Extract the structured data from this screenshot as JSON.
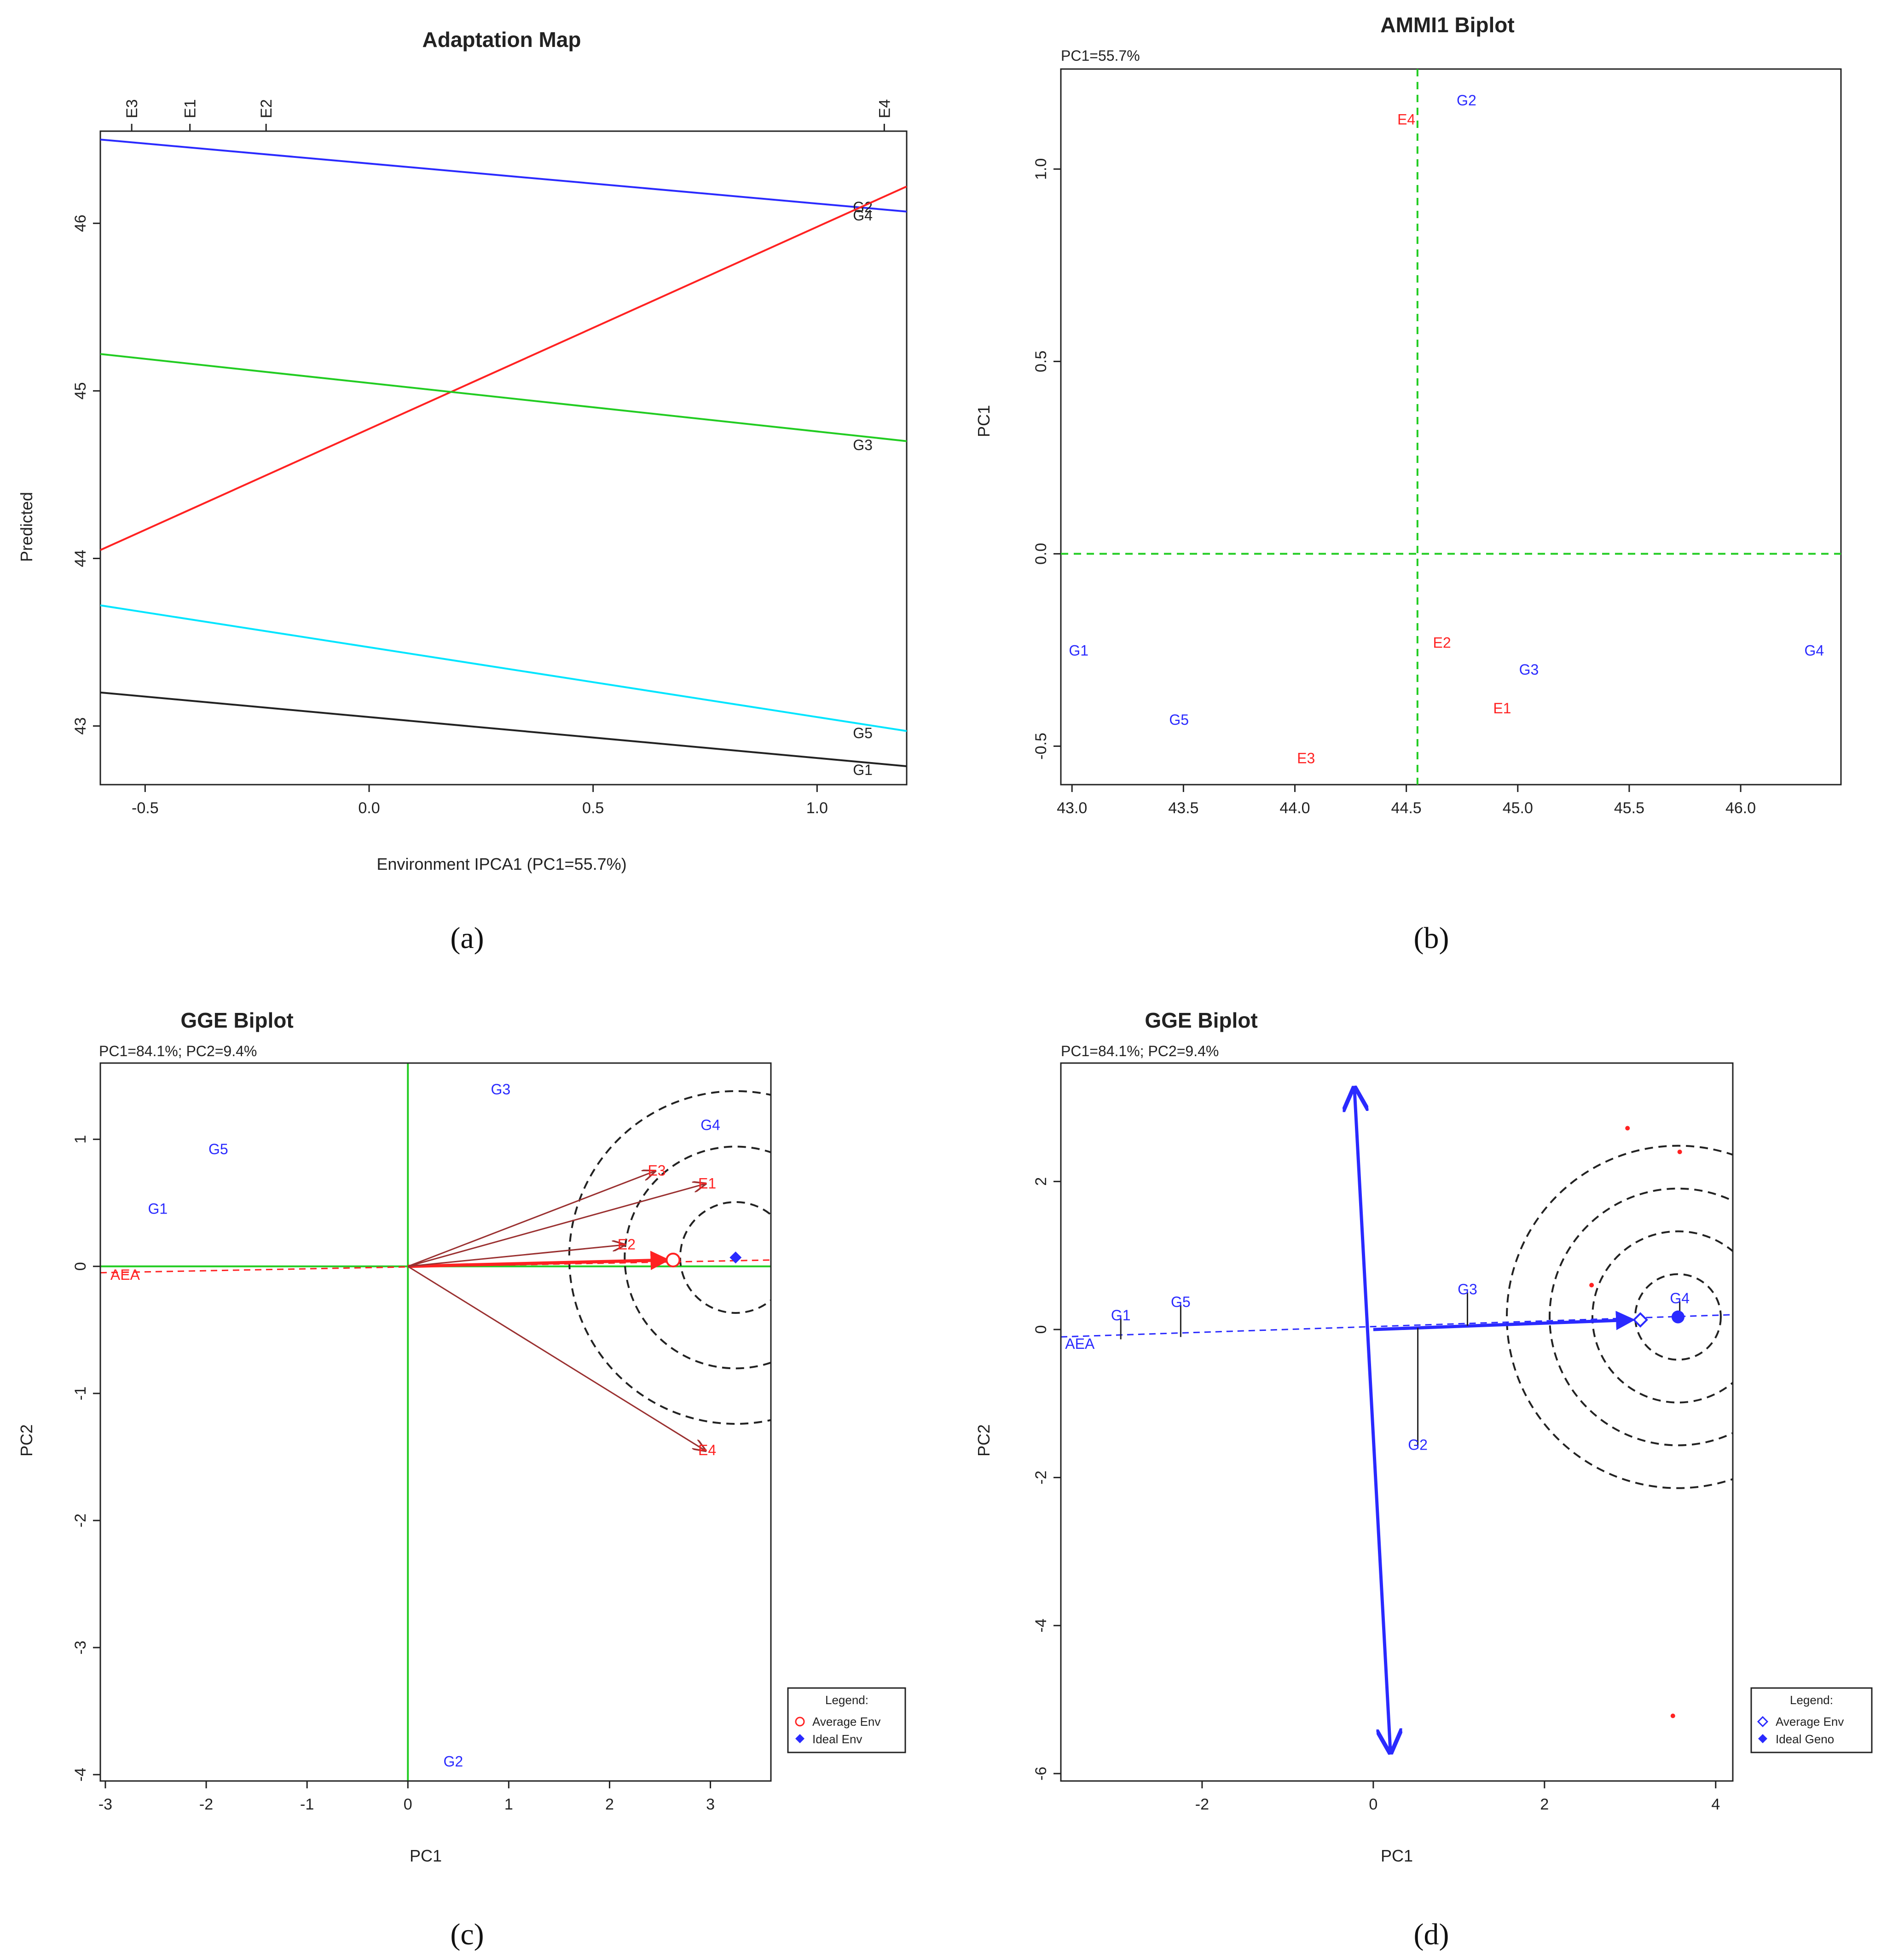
{
  "colors": {
    "red": "#ff2222",
    "blue": "#2a2aff",
    "green": "#22cc22",
    "cyan": "#00e5ff",
    "black": "#222222",
    "brown": "#9a3030"
  },
  "captions": [
    "(a)",
    "(b)",
    "(c)",
    "(d)"
  ],
  "chart_data": [
    {
      "type": "line",
      "title": "Adaptation Map",
      "xlabel": "Environment IPCA1 (PC1=55.7%)",
      "ylabel": "Predicted",
      "xlim": [
        -0.6,
        1.2
      ],
      "ylim": [
        42.65,
        46.55
      ],
      "xticks": [
        -0.5,
        0.0,
        0.5,
        1.0
      ],
      "xtick_labels": [
        "-0.5",
        "0.0",
        "0.5",
        "1.0"
      ],
      "yticks": [
        43,
        44,
        45,
        46
      ],
      "ytick_labels": [
        "43",
        "44",
        "45",
        "46"
      ],
      "top_ticks": [
        {
          "label": "E3",
          "x": -0.53
        },
        {
          "label": "E1",
          "x": -0.4
        },
        {
          "label": "E2",
          "x": -0.23
        },
        {
          "label": "E4",
          "x": 1.15
        }
      ],
      "series": [
        {
          "name": "G2",
          "label": "G2",
          "color": "#2a2aff",
          "x": [
            -0.6,
            1.2
          ],
          "y": [
            46.5,
            46.07
          ],
          "label_at": [
            1.08,
            46.1
          ]
        },
        {
          "name": "G4",
          "label": "G4",
          "color": "#ff2222",
          "x": [
            -0.6,
            1.2
          ],
          "y": [
            44.05,
            46.22
          ],
          "label_at": [
            1.08,
            46.05
          ]
        },
        {
          "name": "G3",
          "label": "G3",
          "color": "#22cc22",
          "x": [
            -0.6,
            1.2
          ],
          "y": [
            45.22,
            44.7
          ],
          "label_at": [
            1.08,
            44.68
          ]
        },
        {
          "name": "G5",
          "label": "G5",
          "color": "#00e5ff",
          "x": [
            -0.6,
            1.2
          ],
          "y": [
            43.72,
            42.97
          ],
          "label_at": [
            1.08,
            42.96
          ]
        },
        {
          "name": "G1",
          "label": "G1",
          "color": "#222222",
          "x": [
            -0.6,
            1.2
          ],
          "y": [
            43.2,
            42.76
          ],
          "label_at": [
            1.08,
            42.74
          ]
        }
      ]
    },
    {
      "type": "scatter",
      "title": "AMMI1 Biplot",
      "subtitle": "PC1=55.7%",
      "xlabel": "",
      "ylabel": "PC1",
      "xlim": [
        42.95,
        46.45
      ],
      "ylim": [
        -0.6,
        1.26
      ],
      "xticks": [
        43.0,
        43.5,
        44.0,
        44.5,
        45.0,
        45.5,
        46.0
      ],
      "xtick_labels": [
        "43.0",
        "43.5",
        "44.0",
        "44.5",
        "45.0",
        "45.5",
        "46.0"
      ],
      "yticks": [
        -0.5,
        0.0,
        0.5,
        1.0
      ],
      "ytick_labels": [
        "-0.5",
        "0.0",
        "0.5",
        "1.0"
      ],
      "ref_x": 44.55,
      "ref_y": 0.0,
      "points": [
        {
          "label": "G2",
          "x": 44.77,
          "y": 1.18,
          "group": "genotype"
        },
        {
          "label": "E4",
          "x": 44.5,
          "y": 1.13,
          "group": "environment"
        },
        {
          "label": "G1",
          "x": 43.03,
          "y": -0.25,
          "group": "genotype"
        },
        {
          "label": "E2",
          "x": 44.66,
          "y": -0.23,
          "group": "environment"
        },
        {
          "label": "G3",
          "x": 45.05,
          "y": -0.3,
          "group": "genotype"
        },
        {
          "label": "G4",
          "x": 46.33,
          "y": -0.25,
          "group": "genotype"
        },
        {
          "label": "E1",
          "x": 44.93,
          "y": -0.4,
          "group": "environment"
        },
        {
          "label": "G5",
          "x": 43.48,
          "y": -0.43,
          "group": "genotype"
        },
        {
          "label": "E3",
          "x": 44.05,
          "y": -0.53,
          "group": "environment"
        }
      ]
    },
    {
      "type": "scatter",
      "title": "GGE Biplot",
      "subtitle": "PC1=84.1%; PC2=9.4%",
      "xlabel": "PC1",
      "ylabel": "PC2",
      "xlim": [
        -3.05,
        3.6
      ],
      "ylim": [
        -4.05,
        1.6
      ],
      "xticks": [
        -3,
        -2,
        -1,
        0,
        1,
        2,
        3
      ],
      "xtick_labels": [
        "-3",
        "-2",
        "-1",
        "0",
        "1",
        "2",
        "3"
      ],
      "yticks": [
        -4,
        -3,
        -2,
        -1,
        0,
        1
      ],
      "ytick_labels": [
        "-4",
        "-3",
        "-2",
        "-1",
        "0",
        "1"
      ],
      "aea_label": "AEA",
      "genotypes": [
        {
          "label": "G3",
          "x": 0.92,
          "y": 1.39
        },
        {
          "label": "G4",
          "x": 3.0,
          "y": 1.11
        },
        {
          "label": "G5",
          "x": -1.88,
          "y": 0.92
        },
        {
          "label": "G1",
          "x": -2.48,
          "y": 0.45
        },
        {
          "label": "G2",
          "x": 0.45,
          "y": -3.9
        }
      ],
      "environments": [
        {
          "label": "E3",
          "x": 2.45,
          "y": 0.75
        },
        {
          "label": "E1",
          "x": 2.95,
          "y": 0.65
        },
        {
          "label": "E2",
          "x": 2.15,
          "y": 0.17
        },
        {
          "label": "E4",
          "x": 2.95,
          "y": -1.45
        }
      ],
      "average_env": {
        "x": 2.63,
        "y": 0.05
      },
      "ideal": {
        "x": 3.25,
        "y": 0.07
      },
      "circle_radii": [
        0.55,
        1.1,
        1.65
      ],
      "legend": {
        "title": "Legend:",
        "items": [
          "Average Env",
          "Ideal Env"
        ]
      }
    },
    {
      "type": "scatter",
      "title": "GGE Biplot",
      "subtitle": "PC1=84.1%; PC2=9.4%",
      "xlabel": "PC1",
      "ylabel": "PC2",
      "xlim": [
        -3.65,
        4.2
      ],
      "ylim": [
        -6.1,
        3.6
      ],
      "xticks": [
        -2,
        0,
        2,
        4
      ],
      "xtick_labels": [
        "-2",
        "0",
        "2",
        "4"
      ],
      "yticks": [
        -6,
        -4,
        -2,
        0,
        2
      ],
      "ytick_labels": [
        "-6",
        "-4",
        "-2",
        "0",
        "2"
      ],
      "aea_label": "AEA",
      "genotypes": [
        {
          "label": "G1",
          "x": -2.95,
          "y": 0.15
        },
        {
          "label": "G5",
          "x": -2.25,
          "y": 0.33
        },
        {
          "label": "G3",
          "x": 1.1,
          "y": 0.5
        },
        {
          "label": "G4",
          "x": 3.58,
          "y": 0.38
        },
        {
          "label": "G2",
          "x": 0.52,
          "y": -1.6
        }
      ],
      "environment_markers": [
        {
          "x": 2.97,
          "y": 2.72
        },
        {
          "x": 3.58,
          "y": 2.4
        },
        {
          "x": 2.55,
          "y": 0.6
        },
        {
          "x": 3.5,
          "y": -5.22
        }
      ],
      "average_env": {
        "x": 3.12,
        "y": 0.13
      },
      "ideal": {
        "x": 3.56,
        "y": 0.17
      },
      "circle_radii": [
        0.5,
        1.0,
        1.5,
        2.0
      ],
      "legend": {
        "title": "Legend:",
        "items": [
          "Average Env",
          "Ideal Geno"
        ]
      }
    }
  ]
}
